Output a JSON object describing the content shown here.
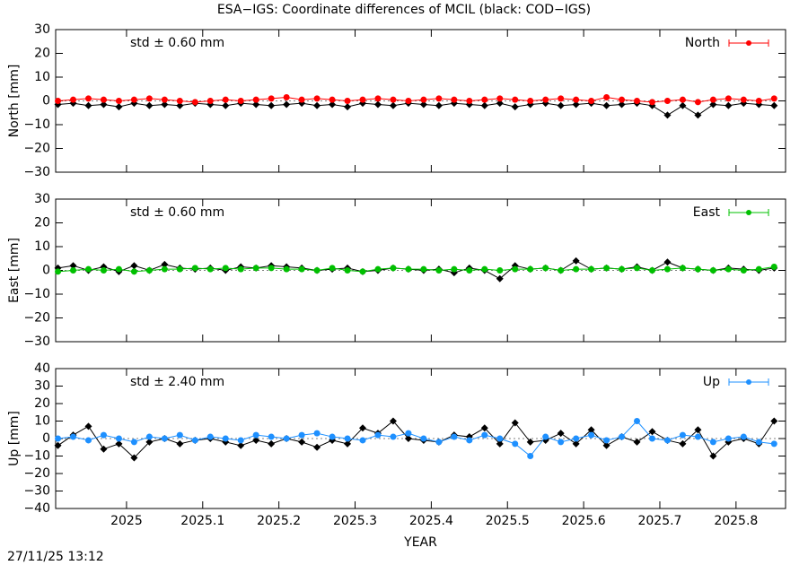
{
  "title": "ESA−IGS: Coordinate differences of MCIL (black: COD−IGS)",
  "timestamp": "27/11/25 13:12",
  "chart_data": [
    {
      "type": "line",
      "ylabel": "North [mm]",
      "annotation": "std ± 0.60 mm",
      "annotation_color": "#ff0000",
      "x": [
        2024.91,
        2024.93,
        2024.95,
        2024.97,
        2024.99,
        2025.01,
        2025.03,
        2025.05,
        2025.07,
        2025.09,
        2025.11,
        2025.13,
        2025.15,
        2025.17,
        2025.19,
        2025.21,
        2025.23,
        2025.25,
        2025.27,
        2025.29,
        2025.31,
        2025.33,
        2025.35,
        2025.37,
        2025.39,
        2025.41,
        2025.43,
        2025.45,
        2025.47,
        2025.49,
        2025.51,
        2025.53,
        2025.55,
        2025.57,
        2025.59,
        2025.61,
        2025.63,
        2025.65,
        2025.67,
        2025.69,
        2025.71,
        2025.73,
        2025.75,
        2025.77,
        2025.79,
        2025.81,
        2025.83,
        2025.85
      ],
      "series": [
        {
          "color": "#000000",
          "values": [
            -1.5,
            -1,
            -2,
            -1.5,
            -2.5,
            -1,
            -2,
            -1.5,
            -2,
            -1,
            -1.5,
            -2,
            -1,
            -1.5,
            -2,
            -1.5,
            -1,
            -2,
            -1.5,
            -2.5,
            -1,
            -1.5,
            -2,
            -1,
            -1.5,
            -2,
            -1,
            -1.5,
            -2,
            -1,
            -2.5,
            -1.5,
            -1,
            -2,
            -1.5,
            -1,
            -2,
            -1.5,
            -1,
            -2,
            -6,
            -2,
            -6,
            -1.5,
            -2,
            -1,
            -1.5,
            -2
          ]
        },
        {
          "name": "North",
          "color": "#ff0000",
          "values": [
            0,
            0.5,
            1,
            0.5,
            0,
            0.5,
            1,
            0.5,
            0,
            -0.5,
            0,
            0.5,
            0,
            0.5,
            1,
            1.5,
            0.5,
            1,
            0.5,
            0,
            0.5,
            1,
            0.5,
            0,
            0.5,
            1,
            0.5,
            0,
            0.5,
            1,
            0.5,
            0,
            0.5,
            1,
            0.5,
            0,
            1.5,
            0.5,
            0,
            -0.5,
            0,
            0.5,
            -0.5,
            0.5,
            1,
            0.5,
            0,
            1
          ]
        }
      ],
      "xlim": [
        2024.907,
        2025.865
      ],
      "xticks": [
        2025,
        2025.1,
        2025.2,
        2025.3,
        2025.4,
        2025.5,
        2025.6,
        2025.7,
        2025.8
      ],
      "ylim": [
        -30,
        30
      ],
      "yticks": [
        {
          "value": -30,
          "label": "−30"
        },
        {
          "value": -20,
          "label": "−20"
        },
        {
          "value": -10,
          "label": "−10"
        },
        0,
        10,
        20,
        30
      ],
      "legend": "top-right"
    },
    {
      "type": "line",
      "ylabel": "East [mm]",
      "annotation": "std ± 0.60 mm",
      "annotation_color": "#00c000",
      "x": [
        2024.91,
        2024.93,
        2024.95,
        2024.97,
        2024.99,
        2025.01,
        2025.03,
        2025.05,
        2025.07,
        2025.09,
        2025.11,
        2025.13,
        2025.15,
        2025.17,
        2025.19,
        2025.21,
        2025.23,
        2025.25,
        2025.27,
        2025.29,
        2025.31,
        2025.33,
        2025.35,
        2025.37,
        2025.39,
        2025.41,
        2025.43,
        2025.45,
        2025.47,
        2025.49,
        2025.51,
        2025.53,
        2025.55,
        2025.57,
        2025.59,
        2025.61,
        2025.63,
        2025.65,
        2025.67,
        2025.69,
        2025.71,
        2025.73,
        2025.75,
        2025.77,
        2025.79,
        2025.81,
        2025.83,
        2025.85
      ],
      "series": [
        {
          "color": "#000000",
          "values": [
            1,
            2,
            0,
            1.5,
            -0.5,
            2,
            0,
            2.5,
            1,
            0.5,
            1,
            0,
            1.5,
            1,
            2,
            1.5,
            1,
            0,
            0.5,
            1,
            -0.5,
            0,
            1,
            0.5,
            0,
            0.5,
            -1,
            1,
            0,
            -3.5,
            2,
            0.5,
            1,
            0,
            4,
            0.5,
            1,
            0.5,
            1.5,
            0,
            3.5,
            1,
            0.5,
            0,
            1,
            0.5,
            0,
            1
          ]
        },
        {
          "name": "East",
          "color": "#00c000",
          "values": [
            -0.5,
            0,
            0.5,
            0,
            0.5,
            -0.5,
            0,
            0.5,
            0.5,
            1,
            0.5,
            1,
            0.5,
            1,
            1,
            0.5,
            0.5,
            0,
            1,
            0,
            -0.5,
            0.5,
            1,
            0.5,
            0.5,
            0,
            0.5,
            0,
            0.5,
            0,
            0.5,
            0.5,
            1,
            0,
            0.5,
            0.5,
            1,
            0.5,
            1,
            0,
            0.5,
            1,
            0.5,
            0,
            0.5,
            0,
            0.5,
            1.5
          ]
        }
      ],
      "xlim": [
        2024.907,
        2025.865
      ],
      "xticks": [
        2025,
        2025.1,
        2025.2,
        2025.3,
        2025.4,
        2025.5,
        2025.6,
        2025.7,
        2025.8
      ],
      "ylim": [
        -30,
        30
      ],
      "yticks": [
        {
          "value": -30,
          "label": "−30"
        },
        {
          "value": -20,
          "label": "−20"
        },
        {
          "value": -10,
          "label": "−10"
        },
        0,
        10,
        20,
        30
      ],
      "legend": "top-right"
    },
    {
      "type": "line",
      "ylabel": "Up [mm]",
      "xlabel": "YEAR",
      "annotation": "std ± 2.40 mm",
      "annotation_color": "#1e90ff",
      "x": [
        2024.91,
        2024.93,
        2024.95,
        2024.97,
        2024.99,
        2025.01,
        2025.03,
        2025.05,
        2025.07,
        2025.09,
        2025.11,
        2025.13,
        2025.15,
        2025.17,
        2025.19,
        2025.21,
        2025.23,
        2025.25,
        2025.27,
        2025.29,
        2025.31,
        2025.33,
        2025.35,
        2025.37,
        2025.39,
        2025.41,
        2025.43,
        2025.45,
        2025.47,
        2025.49,
        2025.51,
        2025.53,
        2025.55,
        2025.57,
        2025.59,
        2025.61,
        2025.63,
        2025.65,
        2025.67,
        2025.69,
        2025.71,
        2025.73,
        2025.75,
        2025.77,
        2025.79,
        2025.81,
        2025.83,
        2025.85
      ],
      "series": [
        {
          "color": "#000000",
          "values": [
            -4,
            2,
            7,
            -6,
            -3,
            -11,
            -2,
            0,
            -3,
            -1,
            0,
            -2,
            -4,
            -1,
            -3,
            0,
            -2,
            -5,
            -1,
            -3,
            6,
            3,
            10,
            0,
            -1,
            -2,
            2,
            1,
            6,
            -3,
            9,
            -2,
            -1,
            3,
            -3,
            5,
            -4,
            1,
            -2,
            4,
            -1,
            -3,
            5,
            -10,
            -2,
            0,
            -3,
            10
          ]
        },
        {
          "name": "Up",
          "color": "#1e90ff",
          "values": [
            0,
            1,
            -1,
            2,
            0,
            -2,
            1,
            0,
            2,
            -1,
            1,
            0,
            -1,
            2,
            1,
            0,
            2,
            3,
            1,
            0,
            -1,
            2,
            1,
            3,
            0,
            -2,
            1,
            -1,
            2,
            0,
            -3,
            -10,
            1,
            -2,
            0,
            2,
            -1,
            1,
            10,
            0,
            -1,
            2,
            1,
            -2,
            0,
            1,
            -2,
            -3
          ]
        }
      ],
      "xlim": [
        2024.907,
        2025.865
      ],
      "xticks": [
        2025,
        2025.1,
        2025.2,
        2025.3,
        2025.4,
        2025.5,
        2025.6,
        2025.7,
        2025.8
      ],
      "ylim": [
        -40,
        40
      ],
      "yticks": [
        {
          "value": -40,
          "label": "−40"
        },
        {
          "value": -30,
          "label": "−30"
        },
        {
          "value": -20,
          "label": "−20"
        },
        {
          "value": -10,
          "label": "−10"
        },
        0,
        10,
        20,
        30,
        40
      ],
      "legend": "top-right"
    }
  ]
}
